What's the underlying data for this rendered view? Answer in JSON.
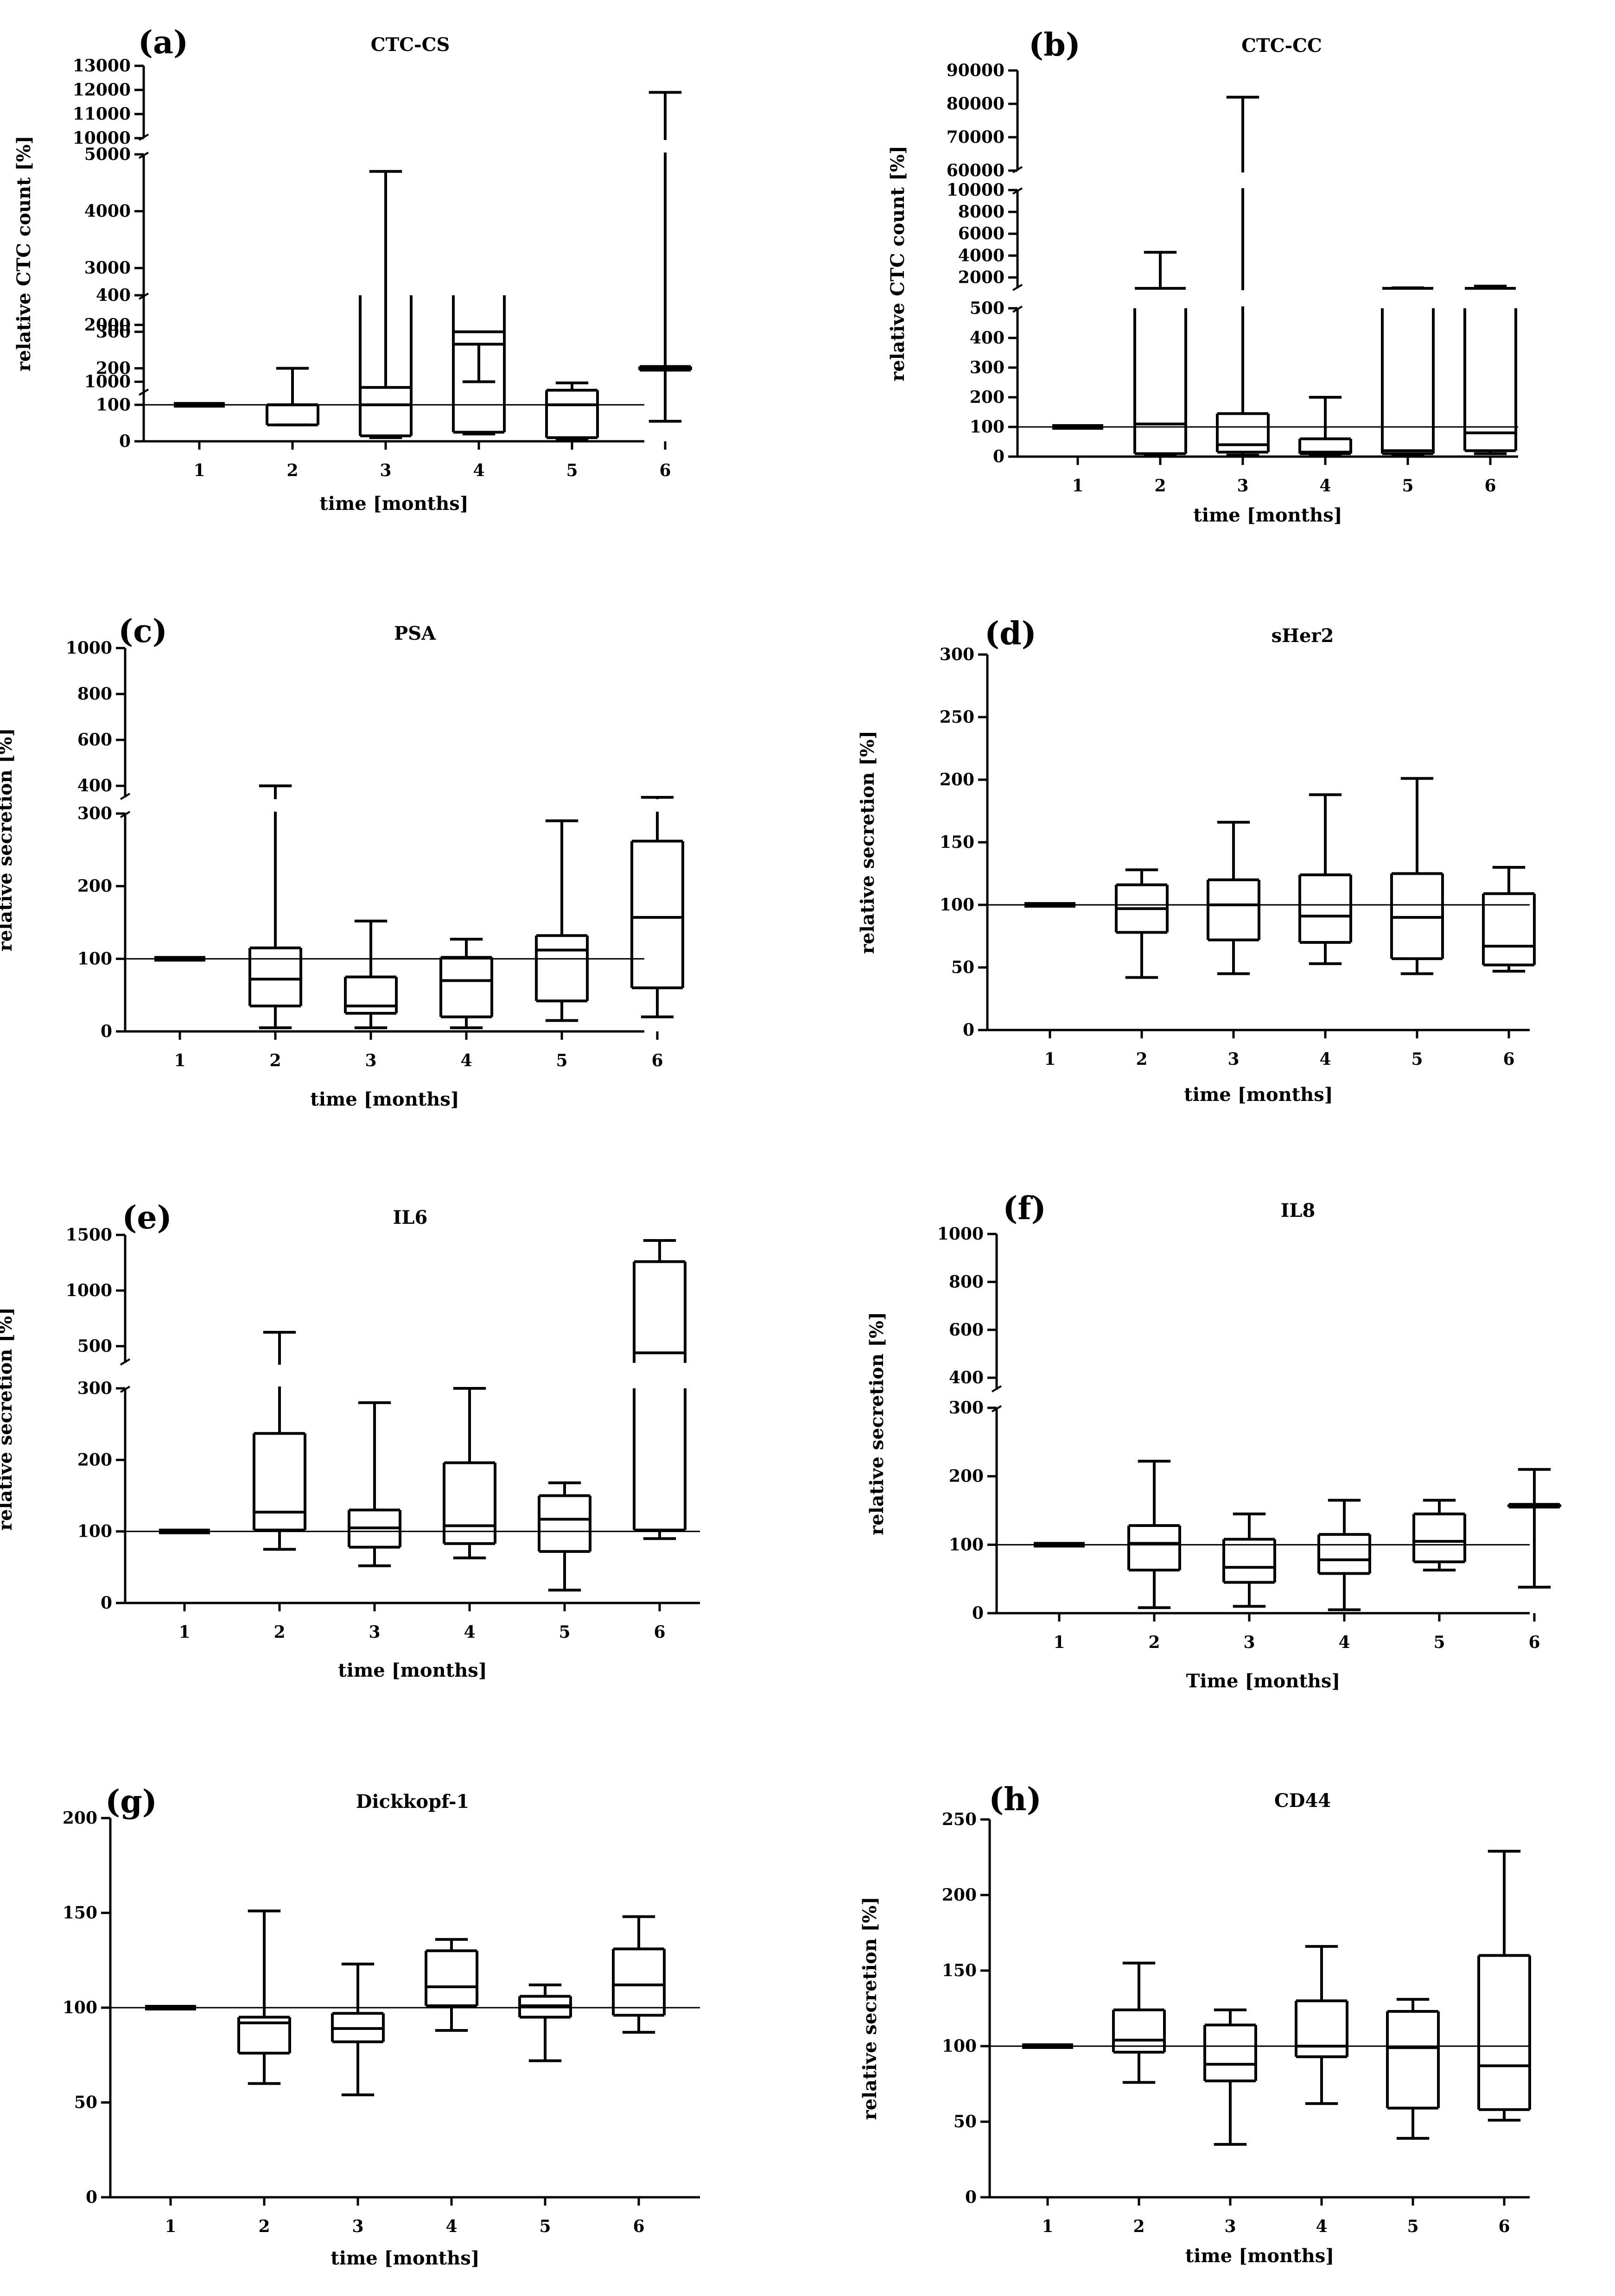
{
  "figure": {
    "panels": [
      "(a)",
      "(b)",
      "(c)",
      "(d)",
      "(e)",
      "(f)",
      "(g)",
      "(h)"
    ]
  },
  "chart_data": [
    {
      "panel": "(a)",
      "title": "CTC-CS",
      "type": "boxplot",
      "xlabel": "time [months]",
      "ylabel": "relative CTC count [%]",
      "reference_line": 100,
      "categories": [
        "1",
        "2",
        "3",
        "4",
        "5",
        "6"
      ],
      "y_axis_segments": [
        {
          "range": [
            0,
            400
          ],
          "ticks": [
            0,
            100,
            200,
            300,
            400
          ]
        },
        {
          "range": [
            800,
            5000
          ],
          "ticks": [
            1000,
            2000,
            3000,
            4000,
            5000
          ]
        },
        {
          "range": [
            10000,
            13000
          ],
          "ticks": [
            10000,
            11000,
            12000,
            13000
          ]
        }
      ],
      "boxes": [
        {
          "min": 100,
          "q1": 100,
          "median": 100,
          "q3": 100,
          "max": 100
        },
        {
          "min": 45,
          "q1": 45,
          "median": 100,
          "q3": 100,
          "max": 200
        },
        {
          "min": 10,
          "q1": 15,
          "median": 100,
          "q3": 900,
          "max": 4700
        },
        {
          "min": 20,
          "q1": 25,
          "median": 300,
          "q3": 600,
          "max": 1000
        },
        {
          "min": 5,
          "q1": 10,
          "median": 100,
          "q3": 140,
          "max": 160
        },
        {
          "min": 55,
          "q1": 195,
          "median": 200,
          "q3": 205,
          "max": 11900
        }
      ]
    },
    {
      "panel": "(b)",
      "title": "CTC-CC",
      "type": "boxplot",
      "xlabel": "time [months]",
      "ylabel": "relative CTC count [%]",
      "reference_line": 100,
      "categories": [
        "1",
        "2",
        "3",
        "4",
        "5",
        "6"
      ],
      "y_axis_segments": [
        {
          "range": [
            0,
            500
          ],
          "ticks": [
            0,
            100,
            200,
            300,
            400,
            500
          ]
        },
        {
          "range": [
            1000,
            10000
          ],
          "ticks": [
            2000,
            4000,
            6000,
            8000,
            10000
          ]
        },
        {
          "range": [
            60000,
            90000
          ],
          "ticks": [
            60000,
            70000,
            80000,
            90000
          ]
        }
      ],
      "boxes": [
        {
          "min": 100,
          "q1": 100,
          "median": 100,
          "q3": 100,
          "max": 100
        },
        {
          "min": 5,
          "q1": 10,
          "median": 110,
          "q3": 1000,
          "max": 4300
        },
        {
          "min": 5,
          "q1": 15,
          "median": 40,
          "q3": 145,
          "max": 82000
        },
        {
          "min": 5,
          "q1": 10,
          "median": 15,
          "q3": 60,
          "max": 200
        },
        {
          "min": 5,
          "q1": 10,
          "median": 20,
          "q3": 1000,
          "max": 1050
        },
        {
          "min": 10,
          "q1": 20,
          "median": 80,
          "q3": 1000,
          "max": 1200
        }
      ]
    },
    {
      "panel": "(c)",
      "title": "PSA",
      "type": "boxplot",
      "xlabel": "time [months]",
      "ylabel": "relative secretion  [%]",
      "reference_line": 100,
      "categories": [
        "1",
        "2",
        "3",
        "4",
        "5",
        "6"
      ],
      "y_axis_segments": [
        {
          "range": [
            0,
            300
          ],
          "ticks": [
            0,
            100,
            200,
            300
          ]
        },
        {
          "range": [
            350,
            1000
          ],
          "ticks": [
            400,
            600,
            800,
            1000
          ]
        }
      ],
      "boxes": [
        {
          "min": 100,
          "q1": 100,
          "median": 100,
          "q3": 100,
          "max": 100
        },
        {
          "min": 5,
          "q1": 35,
          "median": 72,
          "q3": 115,
          "max": 400
        },
        {
          "min": 5,
          "q1": 25,
          "median": 35,
          "q3": 75,
          "max": 152
        },
        {
          "min": 5,
          "q1": 20,
          "median": 70,
          "q3": 102,
          "max": 127
        },
        {
          "min": 15,
          "q1": 42,
          "median": 112,
          "q3": 132,
          "max": 290
        },
        {
          "min": 20,
          "q1": 60,
          "median": 157,
          "q3": 262,
          "max": 350
        }
      ]
    },
    {
      "panel": "(d)",
      "title": "sHer2",
      "type": "boxplot",
      "xlabel": "time [months]",
      "ylabel": "relative secretion  [%]",
      "reference_line": 100,
      "categories": [
        "1",
        "2",
        "3",
        "4",
        "5",
        "6"
      ],
      "y_axis_segments": [
        {
          "range": [
            0,
            300
          ],
          "ticks": [
            0,
            50,
            100,
            150,
            200,
            250,
            300
          ]
        }
      ],
      "boxes": [
        {
          "min": 100,
          "q1": 100,
          "median": 100,
          "q3": 100,
          "max": 100
        },
        {
          "min": 42,
          "q1": 78,
          "median": 97,
          "q3": 116,
          "max": 128
        },
        {
          "min": 45,
          "q1": 72,
          "median": 100,
          "q3": 120,
          "max": 166
        },
        {
          "min": 53,
          "q1": 70,
          "median": 91,
          "q3": 124,
          "max": 188
        },
        {
          "min": 45,
          "q1": 57,
          "median": 90,
          "q3": 125,
          "max": 201
        },
        {
          "min": 47,
          "q1": 52,
          "median": 67,
          "q3": 109,
          "max": 130
        }
      ]
    },
    {
      "panel": "(e)",
      "title": "IL6",
      "type": "boxplot",
      "xlabel": "time [months]",
      "ylabel": "relative secretion  [%]",
      "reference_line": 100,
      "categories": [
        "1",
        "2",
        "3",
        "4",
        "5",
        "6"
      ],
      "y_axis_segments": [
        {
          "range": [
            0,
            300
          ],
          "ticks": [
            0,
            100,
            200,
            300
          ]
        },
        {
          "range": [
            350,
            1500
          ],
          "ticks": [
            500,
            1000,
            1500
          ]
        }
      ],
      "boxes": [
        {
          "min": 100,
          "q1": 100,
          "median": 100,
          "q3": 100,
          "max": 100
        },
        {
          "min": 75,
          "q1": 102,
          "median": 127,
          "q3": 237,
          "max": 625
        },
        {
          "min": 52,
          "q1": 78,
          "median": 105,
          "q3": 130,
          "max": 280
        },
        {
          "min": 63,
          "q1": 83,
          "median": 108,
          "q3": 196,
          "max": 300
        },
        {
          "min": 18,
          "q1": 72,
          "median": 117,
          "q3": 150,
          "max": 168
        },
        {
          "min": 90,
          "q1": 102,
          "median": 440,
          "q3": 1260,
          "max": 1450
        }
      ]
    },
    {
      "panel": "(f)",
      "title": "IL8",
      "type": "boxplot",
      "xlabel": "Time [months]",
      "ylabel": "relative secretion  [%]",
      "reference_line": 100,
      "categories": [
        "1",
        "2",
        "3",
        "4",
        "5",
        "6"
      ],
      "y_axis_segments": [
        {
          "range": [
            0,
            300
          ],
          "ticks": [
            0,
            100,
            200,
            300
          ]
        },
        {
          "range": [
            350,
            1000
          ],
          "ticks": [
            400,
            600,
            800,
            1000
          ]
        }
      ],
      "boxes": [
        {
          "min": 100,
          "q1": 100,
          "median": 100,
          "q3": 100,
          "max": 100
        },
        {
          "min": 8,
          "q1": 63,
          "median": 102,
          "q3": 128,
          "max": 222
        },
        {
          "min": 10,
          "q1": 45,
          "median": 67,
          "q3": 108,
          "max": 145
        },
        {
          "min": 5,
          "q1": 58,
          "median": 78,
          "q3": 115,
          "max": 165
        },
        {
          "min": 63,
          "q1": 75,
          "median": 105,
          "q3": 145,
          "max": 165
        },
        {
          "min": 38,
          "q1": 155,
          "median": 157,
          "q3": 159,
          "max": 210
        }
      ]
    },
    {
      "panel": "(g)",
      "title": "Dickkopf-1",
      "type": "boxplot",
      "xlabel": "time [months]",
      "ylabel": "relative secretion  [%]",
      "reference_line": 100,
      "categories": [
        "1",
        "2",
        "3",
        "4",
        "5",
        "6"
      ],
      "y_axis_segments": [
        {
          "range": [
            0,
            200
          ],
          "ticks": [
            0,
            50,
            100,
            150,
            200
          ]
        }
      ],
      "boxes": [
        {
          "min": 100,
          "q1": 100,
          "median": 100,
          "q3": 100,
          "max": 100
        },
        {
          "min": 60,
          "q1": 76,
          "median": 92,
          "q3": 95,
          "max": 151
        },
        {
          "min": 54,
          "q1": 82,
          "median": 89,
          "q3": 97,
          "max": 123
        },
        {
          "min": 88,
          "q1": 101,
          "median": 111,
          "q3": 130,
          "max": 136
        },
        {
          "min": 72,
          "q1": 95,
          "median": 101,
          "q3": 106,
          "max": 112
        },
        {
          "min": 87,
          "q1": 96,
          "median": 112,
          "q3": 131,
          "max": 148
        }
      ]
    },
    {
      "panel": "(h)",
      "title": "CD44",
      "type": "boxplot",
      "xlabel": "time [months]",
      "ylabel": "relative secretion  [%]",
      "reference_line": 100,
      "categories": [
        "1",
        "2",
        "3",
        "4",
        "5",
        "6"
      ],
      "y_axis_segments": [
        {
          "range": [
            0,
            250
          ],
          "ticks": [
            0,
            50,
            100,
            150,
            200,
            250
          ]
        }
      ],
      "boxes": [
        {
          "min": 100,
          "q1": 100,
          "median": 100,
          "q3": 100,
          "max": 100
        },
        {
          "min": 76,
          "q1": 96,
          "median": 104,
          "q3": 124,
          "max": 155
        },
        {
          "min": 35,
          "q1": 77,
          "median": 88,
          "q3": 114,
          "max": 124
        },
        {
          "min": 62,
          "q1": 93,
          "median": 100,
          "q3": 130,
          "max": 166
        },
        {
          "min": 39,
          "q1": 59,
          "median": 99,
          "q3": 123,
          "max": 131
        },
        {
          "min": 51,
          "q1": 58,
          "median": 87,
          "q3": 160,
          "max": 229
        }
      ]
    }
  ]
}
